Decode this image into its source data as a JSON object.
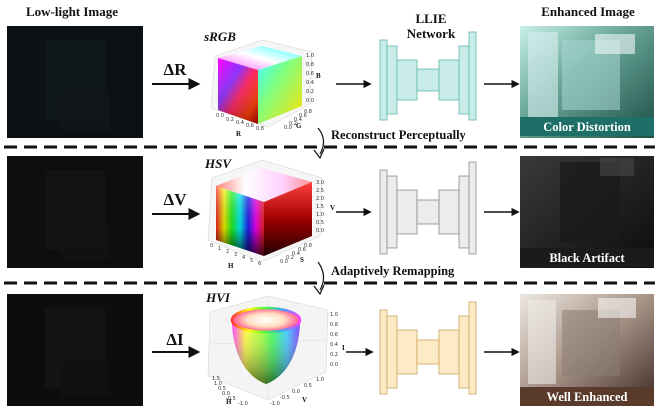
{
  "headers": {
    "low_light": "Low-light Image",
    "llie_network_line1": "LLIE",
    "llie_network_line2": "Network",
    "enhanced": "Enhanced Image"
  },
  "rows": [
    {
      "delta": "ΔR",
      "space": "sRGB",
      "axes": {
        "a": "R",
        "b": "G",
        "c": "B"
      },
      "ticks": {
        "a": [
          "0.0",
          "0.2",
          "0.4",
          "0.6",
          "0.8"
        ],
        "b": [
          "0.0",
          "0.2",
          "0.4",
          "0.6",
          "0.8"
        ],
        "c": [
          "0.0",
          "0.2",
          "0.4",
          "0.6",
          "0.8",
          "1.0"
        ]
      },
      "result": "Color Distortion",
      "network_color": "#c9ece8",
      "network_stroke": "#5fb7ad",
      "caption_bg": "#1e6f67"
    },
    {
      "delta": "ΔV",
      "space": "HSV",
      "axes": {
        "a": "H",
        "b": "S",
        "c": "V"
      },
      "ticks": {
        "a": [
          "0",
          "1",
          "2",
          "3",
          "4",
          "5",
          "6"
        ],
        "b": [
          "0.0",
          "0.2",
          "0.4",
          "0.6",
          "0.8"
        ],
        "c": [
          "0.0",
          "0.5",
          "1.0",
          "1.5",
          "2.0",
          "2.5",
          "3.0"
        ]
      },
      "result": "Black Artifact",
      "network_color": "#ececec",
      "network_stroke": "#8a8a8a",
      "caption_bg": "#1b1b1b"
    },
    {
      "delta": "ΔI",
      "space": "HVI",
      "axes": {
        "a": "H",
        "b": "V",
        "c": "I"
      },
      "ticks": {
        "a": [
          "-1.0",
          "-0.5",
          "0.0",
          "0.5",
          "1.0",
          "1.5"
        ],
        "b": [
          "-1.0",
          "-0.5",
          "0.0",
          "0.5",
          "1.0"
        ],
        "c": [
          "0.0",
          "0.2",
          "0.4",
          "0.6",
          "0.8",
          "1.0"
        ]
      },
      "result": "Well Enhanced",
      "network_color": "#fcebc5",
      "network_stroke": "#c9a55e",
      "caption_bg": "#5a3a2a"
    }
  ],
  "transitions": [
    "Reconstruct Perceptually",
    "Adaptively Remapping"
  ]
}
